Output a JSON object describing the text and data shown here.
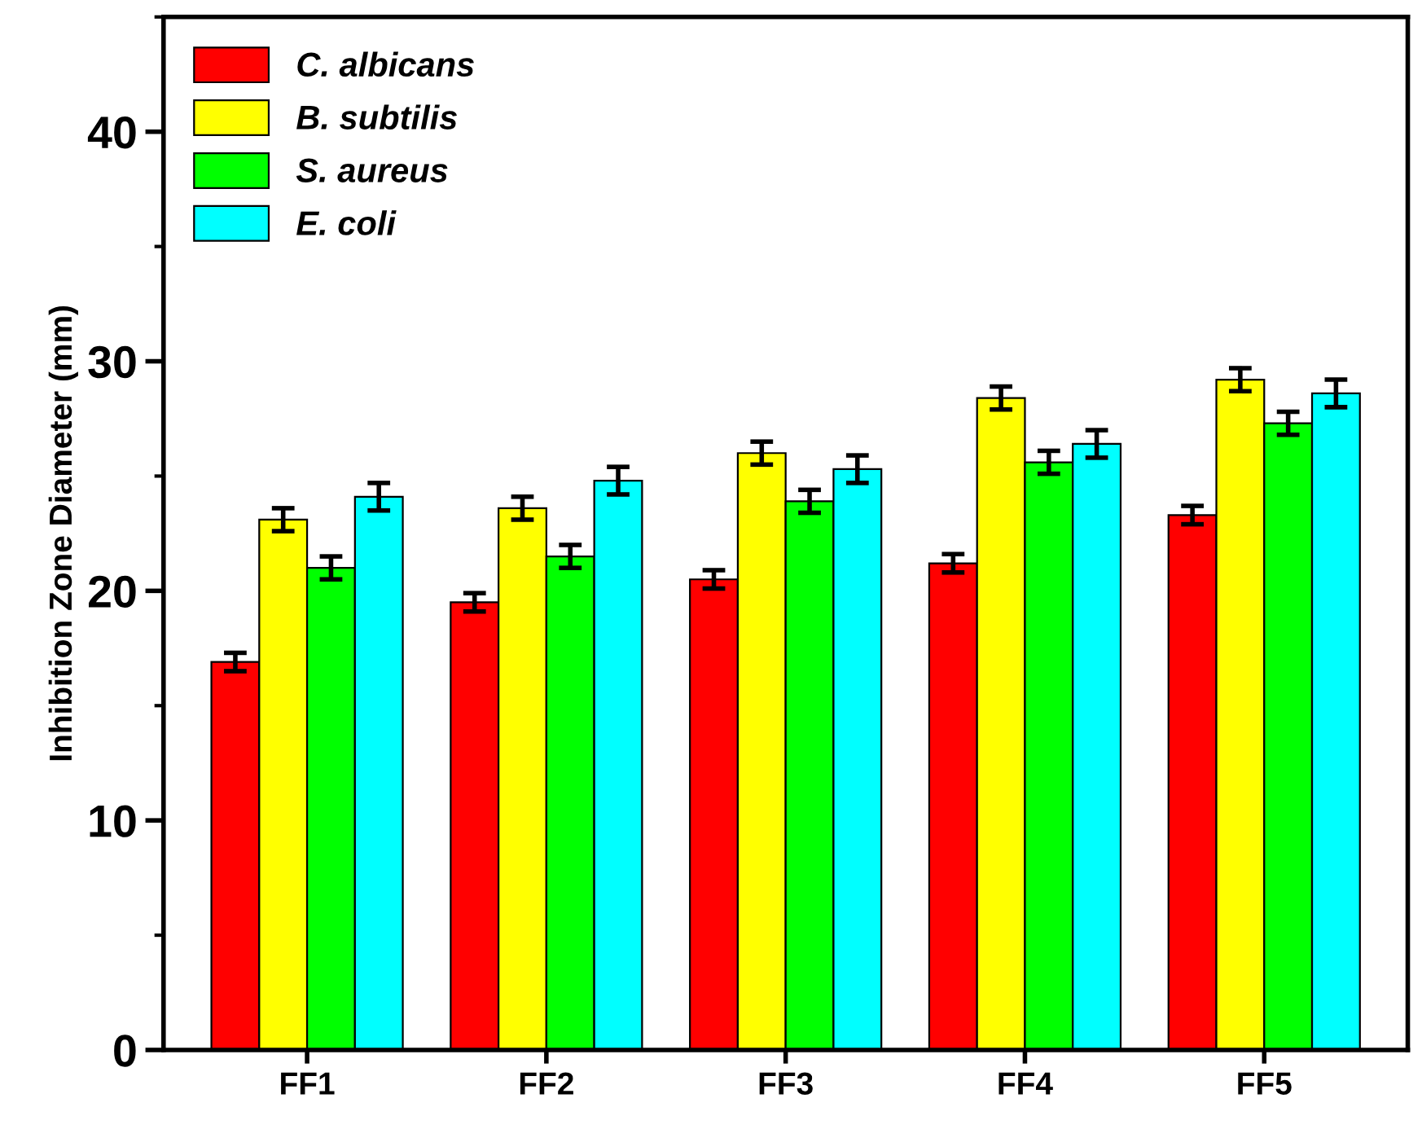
{
  "chart_data": {
    "type": "bar",
    "ylabel": "Inhibition Zone Diameter (mm)",
    "categories": [
      "FF1",
      "FF2",
      "FF3",
      "FF4",
      "FF5"
    ],
    "series": [
      {
        "name": "C. albicans",
        "color": "#ff0000",
        "values": [
          16.9,
          19.5,
          20.5,
          21.2,
          23.3
        ],
        "errors": [
          0.4,
          0.4,
          0.4,
          0.4,
          0.4
        ]
      },
      {
        "name": "B. subtilis",
        "color": "#ffff00",
        "values": [
          23.1,
          23.6,
          26.0,
          28.4,
          29.2
        ],
        "errors": [
          0.5,
          0.5,
          0.5,
          0.5,
          0.5
        ]
      },
      {
        "name": "S. aureus",
        "color": "#00ff00",
        "values": [
          21.0,
          21.5,
          23.9,
          25.6,
          27.3
        ],
        "errors": [
          0.5,
          0.5,
          0.5,
          0.5,
          0.5
        ]
      },
      {
        "name": "E. coli",
        "color": "#00ffff",
        "values": [
          24.1,
          24.8,
          25.3,
          26.4,
          28.6
        ],
        "errors": [
          0.6,
          0.6,
          0.6,
          0.6,
          0.6
        ]
      }
    ],
    "ylim": [
      0,
      45
    ],
    "yticks": [
      0,
      10,
      20,
      30,
      40
    ],
    "grid": false,
    "legend": "top left"
  }
}
